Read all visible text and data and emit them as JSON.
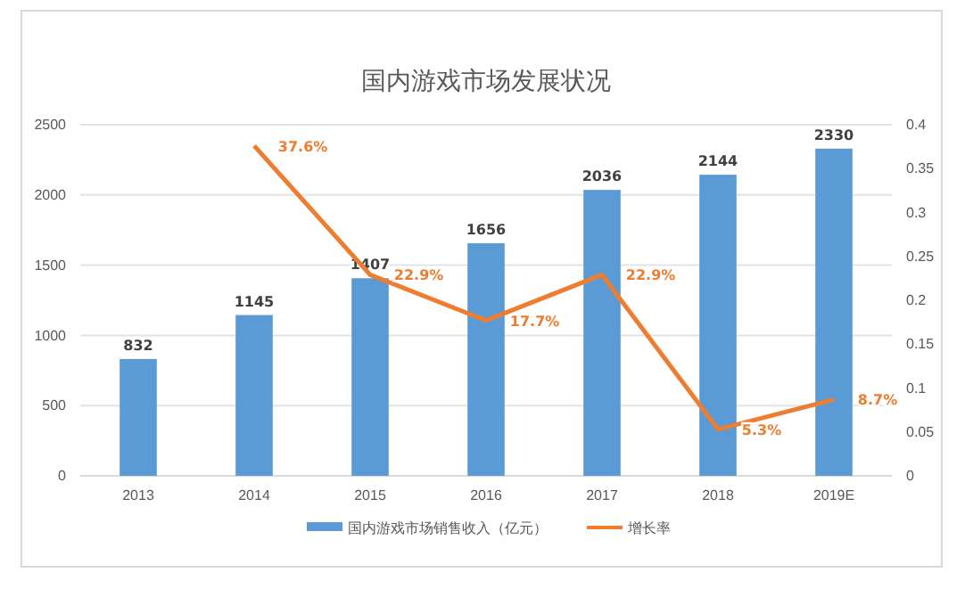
{
  "chart_data": {
    "type": "bar",
    "title": "国内游戏市场发展状况",
    "categories": [
      "2013",
      "2014",
      "2015",
      "2016",
      "2017",
      "2018",
      "2019E"
    ],
    "series": [
      {
        "name": "国内游戏市场销售收入（亿元）",
        "color": "#5b9bd5",
        "values": [
          832,
          1145,
          1407,
          1656,
          2036,
          2144,
          2330
        ],
        "data_labels": true
      },
      {
        "name": "增长率",
        "type": "line",
        "axis": "y2",
        "color": "#ed7d31",
        "values": [
          null,
          0.376,
          0.229,
          0.177,
          0.229,
          0.053,
          0.087
        ],
        "value_labels": [
          null,
          "37.6%",
          "22.9%",
          "17.7%",
          "22.9%",
          "5.3%",
          "8.7%"
        ]
      }
    ],
    "ylim": [
      0,
      2500
    ],
    "yticks": [
      0,
      500,
      1000,
      1500,
      2000,
      2500
    ],
    "y2lim": [
      0,
      0.4
    ],
    "y2ticks": [
      0,
      0.05,
      0.1,
      0.15,
      0.2,
      0.25,
      0.3,
      0.35,
      0.4
    ],
    "grid": "y",
    "legend": "bottom",
    "marker": "none",
    "line_style": "solid"
  }
}
